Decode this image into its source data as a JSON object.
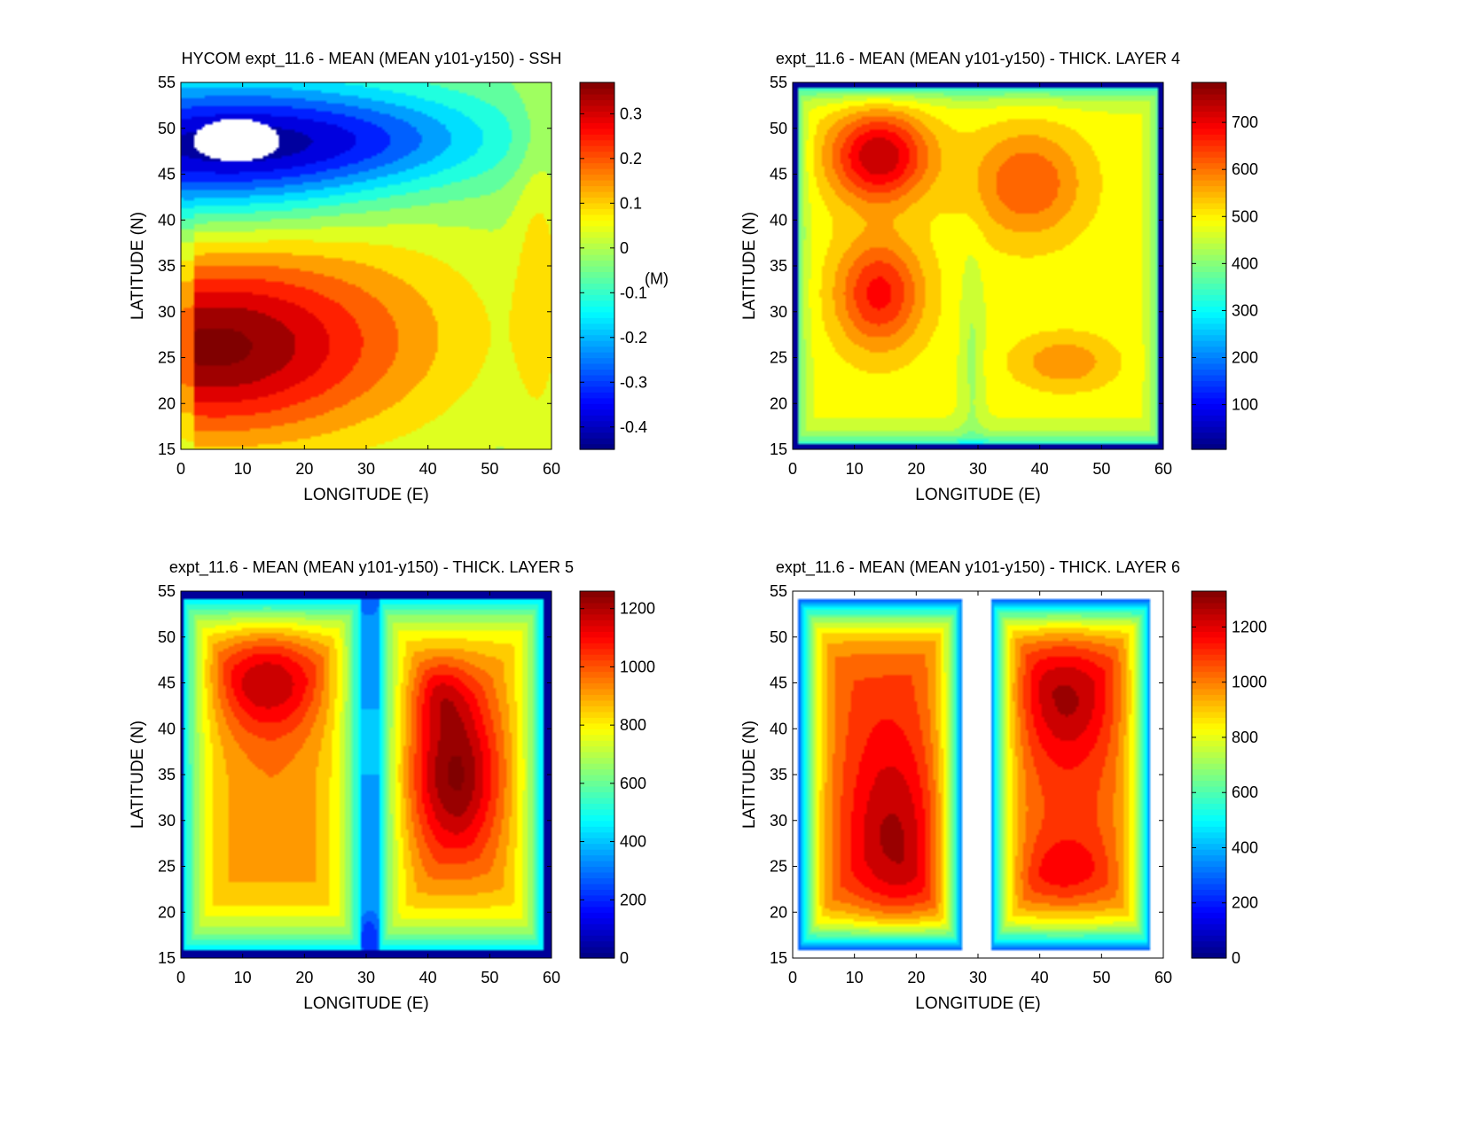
{
  "chart_data": [
    {
      "type": "heatmap",
      "title": "HYCOM expt_11.6 - MEAN (MEAN y101-y150) - SSH",
      "xlabel": "LONGITUDE (E)",
      "ylabel": "LATITUDE (N)",
      "xlim": [
        0,
        60
      ],
      "ylim": [
        15,
        55
      ],
      "xticks": [
        "0",
        "10",
        "20",
        "30",
        "40",
        "50",
        "60"
      ],
      "yticks": [
        "15",
        "20",
        "25",
        "30",
        "35",
        "40",
        "45",
        "50",
        "55"
      ],
      "colorbar": {
        "min": -0.45,
        "max": 0.37,
        "ticks": [
          "0.3",
          "0.2",
          "0.1",
          "0",
          "-0.1",
          "-0.2",
          "-0.3",
          "-0.4"
        ],
        "tick_values": [
          0.3,
          0.2,
          0.1,
          0,
          -0.1,
          -0.2,
          -0.3,
          -0.4
        ],
        "units": "(M)"
      },
      "features": {
        "max_center": [
          4,
          25
        ],
        "min_center": [
          12,
          47
        ],
        "land_mask": [
          [
            2,
            51
          ],
          [
            16,
            46.5
          ]
        ]
      }
    },
    {
      "type": "heatmap",
      "title": "expt_11.6 - MEAN (MEAN y101-y150) - THICK. LAYER 4",
      "xlabel": "LONGITUDE (E)",
      "ylabel": "LATITUDE (N)",
      "xlim": [
        0,
        60
      ],
      "ylim": [
        15,
        55
      ],
      "xticks": [
        "0",
        "10",
        "20",
        "30",
        "40",
        "50",
        "60"
      ],
      "yticks": [
        "15",
        "20",
        "25",
        "30",
        "35",
        "40",
        "45",
        "50",
        "55"
      ],
      "colorbar": {
        "min": 5,
        "max": 785,
        "ticks": [
          "700",
          "600",
          "500",
          "400",
          "300",
          "200",
          "100"
        ],
        "tick_values": [
          700,
          600,
          500,
          400,
          300,
          200,
          100
        ],
        "units": ""
      },
      "features": {
        "max_center": [
          14,
          47
        ],
        "secondary_max": [
          44,
          24.5
        ]
      }
    },
    {
      "type": "heatmap",
      "title": "expt_11.6 - MEAN (MEAN y101-y150) - THICK. LAYER 5",
      "xlabel": "LONGITUDE (E)",
      "ylabel": "LATITUDE (N)",
      "xlim": [
        0,
        60
      ],
      "ylim": [
        15,
        55
      ],
      "xticks": [
        "0",
        "10",
        "20",
        "30",
        "40",
        "50",
        "60"
      ],
      "yticks": [
        "15",
        "20",
        "25",
        "30",
        "35",
        "40",
        "45",
        "50",
        "55"
      ],
      "colorbar": {
        "min": 0,
        "max": 1260,
        "ticks": [
          "1200",
          "1000",
          "800",
          "600",
          "400",
          "200",
          "0"
        ],
        "tick_values": [
          1200,
          1000,
          800,
          600,
          400,
          200,
          0
        ],
        "units": ""
      },
      "features": {
        "west_basin_max": [
          14,
          46
        ],
        "east_basin_max": [
          44,
          34
        ]
      }
    },
    {
      "type": "heatmap",
      "title": "expt_11.6 - MEAN (MEAN y101-y150) - THICK. LAYER 6",
      "xlabel": "LONGITUDE (E)",
      "ylabel": "LATITUDE (N)",
      "xlim": [
        0,
        60
      ],
      "ylim": [
        15,
        55
      ],
      "xticks": [
        "0",
        "10",
        "20",
        "30",
        "40",
        "50",
        "60"
      ],
      "yticks": [
        "15",
        "20",
        "25",
        "30",
        "35",
        "40",
        "45",
        "50",
        "55"
      ],
      "colorbar": {
        "min": 0,
        "max": 1330,
        "ticks": [
          "1200",
          "1000",
          "800",
          "600",
          "400",
          "200",
          "0"
        ],
        "tick_values": [
          1200,
          1000,
          800,
          600,
          400,
          200,
          0
        ],
        "units": ""
      },
      "features": {
        "west_basin_max": [
          17,
          27
        ],
        "east_basin_max": [
          44,
          44
        ]
      }
    }
  ]
}
